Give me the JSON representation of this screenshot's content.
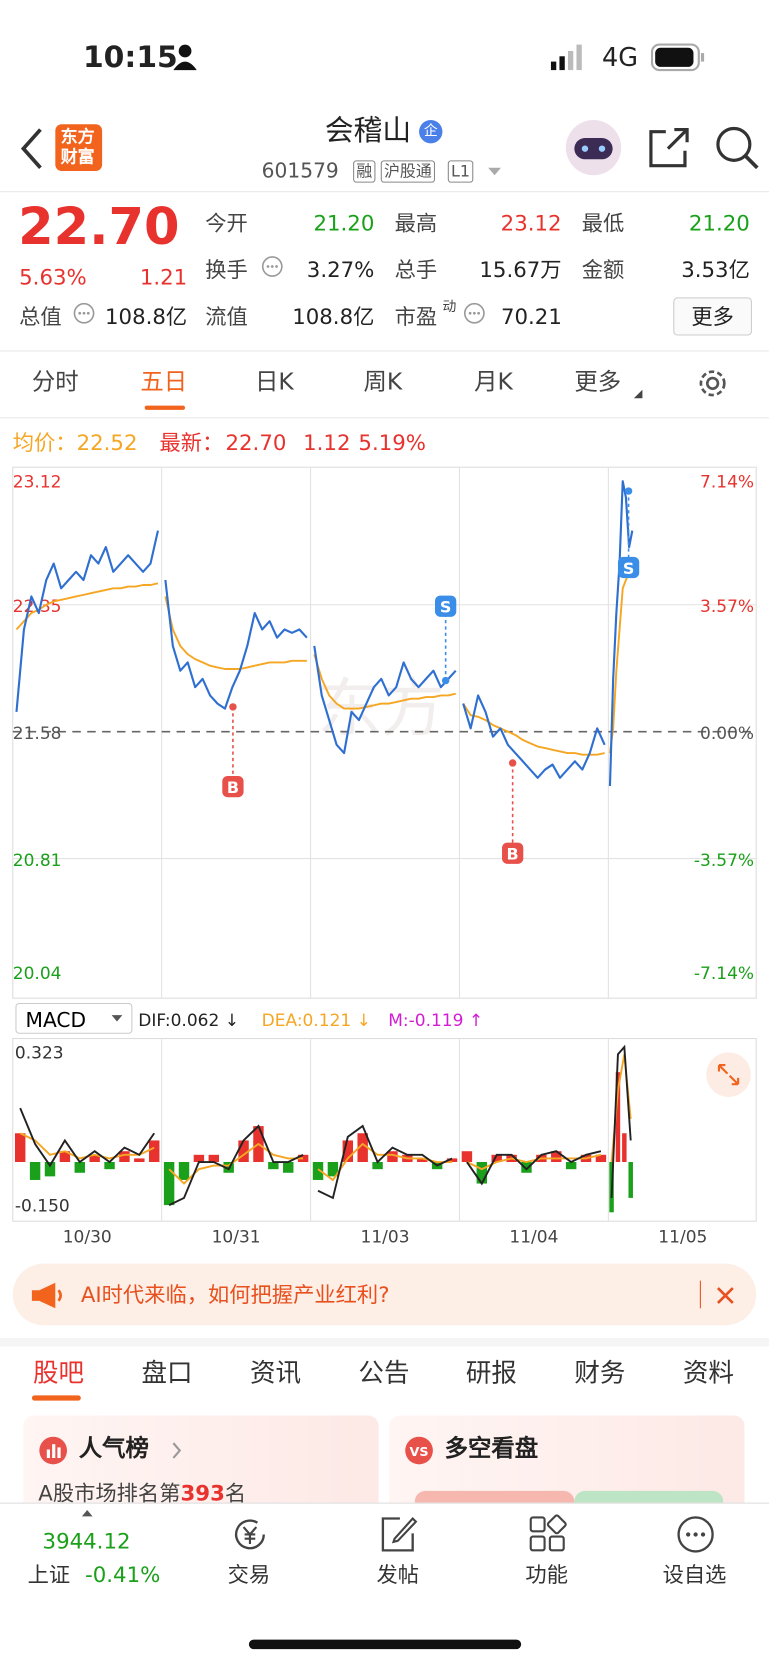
{
  "status": {
    "time": "10:15",
    "network": "4G"
  },
  "header": {
    "logo": [
      "东方",
      "财富"
    ],
    "name": "会稽山",
    "badge": "企",
    "code": "601579",
    "tags": [
      "融",
      "沪股通",
      "L1"
    ]
  },
  "quote": {
    "price": "22.70",
    "pct": "5.63%",
    "change": "1.21",
    "fields": [
      {
        "label": "今开",
        "value": "21.20"
      },
      {
        "label": "最高",
        "value": "23.12"
      },
      {
        "label": "最低",
        "value": "21.20"
      },
      {
        "label": "换手",
        "value": "3.27%"
      },
      {
        "label": "总手",
        "value": "15.67万"
      },
      {
        "label": "金额",
        "value": "3.53亿"
      },
      {
        "label": "总值",
        "value": "108.8亿"
      },
      {
        "label": "流值",
        "value": "108.8亿"
      },
      {
        "label": "市盈",
        "sup": "动",
        "value": "70.21"
      }
    ],
    "more": "更多"
  },
  "tabs": [
    "分时",
    "五日",
    "日K",
    "周K",
    "月K",
    "更多"
  ],
  "legend": {
    "avg_label": "均价：",
    "avg_value": "22.52",
    "last_label": "最新：",
    "last_value": "22.70",
    "change": "1.12",
    "pct": "5.19%"
  },
  "chart_data": {
    "type": "line",
    "ylim": [
      20.04,
      23.12
    ],
    "yticks": [
      20.04,
      20.81,
      21.58,
      22.35,
      23.12
    ],
    "pct_labels": [
      "-7.14%",
      "-3.57%",
      "0.00%",
      "3.57%",
      "7.14%"
    ],
    "x_labels": [
      "10/30",
      "10/31",
      "11/03",
      "11/04",
      "11/05"
    ],
    "price": [
      [
        21.7,
        22.2,
        22.4,
        22.3,
        22.5,
        22.6,
        22.45,
        22.5,
        22.55,
        22.5,
        22.65,
        22.6,
        22.7,
        22.55,
        22.6,
        22.65,
        22.6,
        22.55,
        22.6,
        22.8
      ],
      [
        22.5,
        22.1,
        21.95,
        22.0,
        21.85,
        21.9,
        21.8,
        21.75,
        21.72,
        21.85,
        21.95,
        22.1,
        22.3,
        22.2,
        22.25,
        22.15,
        22.2,
        22.18,
        22.2,
        22.15
      ],
      [
        22.1,
        21.8,
        21.65,
        21.5,
        21.45,
        21.7,
        21.65,
        21.75,
        21.85,
        21.9,
        21.8,
        21.85,
        22.0,
        21.9,
        21.85,
        21.9,
        21.95,
        21.85,
        21.9,
        21.95
      ],
      [
        21.75,
        21.6,
        21.8,
        21.7,
        21.55,
        21.6,
        21.5,
        21.45,
        21.4,
        21.35,
        21.3,
        21.35,
        21.38,
        21.3,
        21.35,
        21.4,
        21.35,
        21.45,
        21.6,
        21.5
      ],
      [
        21.25,
        21.9,
        22.3,
        22.6,
        23.1,
        23.0,
        22.7,
        22.8
      ]
    ],
    "avg": [
      [
        22.2,
        22.25,
        22.3,
        22.32,
        22.35,
        22.37,
        22.38,
        22.39,
        22.4,
        22.41,
        22.42,
        22.43,
        22.44,
        22.45,
        22.45,
        22.46,
        22.46,
        22.47,
        22.47,
        22.48
      ],
      [
        22.4,
        22.2,
        22.1,
        22.05,
        22.02,
        22.0,
        21.98,
        21.97,
        21.96,
        21.96,
        21.96,
        21.97,
        21.98,
        21.99,
        22.0,
        22.0,
        22.0,
        22.01,
        22.01,
        22.01
      ],
      [
        22.05,
        21.9,
        21.8,
        21.75,
        21.72,
        21.72,
        21.72,
        21.73,
        21.74,
        21.75,
        21.75,
        21.76,
        21.77,
        21.78,
        21.78,
        21.79,
        21.79,
        21.8,
        21.8,
        21.81
      ],
      [
        21.75,
        21.68,
        21.67,
        21.65,
        21.62,
        21.6,
        21.58,
        21.56,
        21.53,
        21.51,
        21.49,
        21.48,
        21.47,
        21.46,
        21.45,
        21.45,
        21.44,
        21.44,
        21.44,
        21.45
      ],
      [
        21.45,
        21.6,
        21.95,
        22.2,
        22.45,
        22.5,
        22.55,
        22.57
      ]
    ],
    "trades": [
      {
        "label": "B",
        "price": 21.73
      },
      {
        "label": "S",
        "price": 21.89
      },
      {
        "label": "B",
        "price": 21.39
      },
      {
        "label": "S",
        "price": 23.04
      }
    ],
    "macd": {
      "name": "MACD",
      "dif": "DIF:0.062 ↓",
      "dea": "DEA:0.121 ↓",
      "m": "M:-0.119 ↑",
      "ylim": [
        -0.15,
        0.323
      ],
      "yticks": [
        {
          "value": -0.15,
          "label": "-0.150"
        },
        0.323
      ],
      "hist": [
        [
          0.08,
          -0.05,
          -0.04,
          0.03,
          -0.03,
          0.02,
          -0.02,
          0.03,
          0.01,
          0.06
        ],
        [
          -0.12,
          -0.05,
          0.02,
          0.02,
          -0.03,
          0.06,
          0.1,
          -0.02,
          -0.03,
          0.02
        ],
        [
          -0.05,
          -0.04,
          0.06,
          0.08,
          -0.02,
          0.03,
          0.02,
          0.01,
          -0.02,
          0.01
        ],
        [
          0.03,
          -0.06,
          0.02,
          0.02,
          -0.03,
          0.02,
          0.03,
          -0.02,
          0.02,
          0.02
        ],
        [
          -0.14,
          0.25,
          0.08,
          -0.1
        ]
      ],
      "dif_line": [
        [
          0.15,
          0.05,
          -0.01,
          0.06,
          0.0,
          0.03,
          0.0,
          0.04,
          0.02,
          0.08
        ],
        [
          -0.12,
          -0.1,
          0.0,
          0.0,
          -0.02,
          0.06,
          0.1,
          0.0,
          0.0,
          0.02
        ],
        [
          -0.08,
          -0.1,
          0.07,
          0.1,
          0.0,
          0.04,
          0.02,
          0.02,
          -0.01,
          0.01
        ],
        [
          0.0,
          -0.06,
          0.02,
          0.02,
          -0.02,
          0.02,
          0.03,
          0.0,
          0.02,
          0.03
        ],
        [
          -0.1,
          0.3,
          0.32,
          0.06
        ]
      ],
      "dea_line": [
        [
          0.08,
          0.06,
          0.02,
          0.03,
          0.01,
          0.02,
          0.01,
          0.02,
          0.02,
          0.04
        ],
        [
          -0.02,
          -0.06,
          -0.02,
          -0.01,
          -0.01,
          0.02,
          0.05,
          0.02,
          0.01,
          0.01
        ],
        [
          -0.02,
          -0.05,
          0.01,
          0.05,
          0.02,
          0.02,
          0.01,
          0.01,
          0.0,
          0.0
        ],
        [
          0.0,
          -0.02,
          0.0,
          0.01,
          0.0,
          0.01,
          0.01,
          0.01,
          0.01,
          0.02
        ],
        [
          0.0,
          0.2,
          0.3,
          0.12
        ]
      ]
    }
  },
  "banner": "AI时代来临，如何把握产业红利?",
  "tabs2": [
    "股吧",
    "盘口",
    "资讯",
    "公告",
    "研报",
    "财务",
    "资料"
  ],
  "cards": {
    "rank_title": "人气榜",
    "rank_prefix": "A股市场排名第",
    "rank_value": "393",
    "rank_suffix": "名",
    "bull_title": "多空看盘"
  },
  "nav": {
    "index_value": "3944.12",
    "index_name": "上证",
    "index_pct": "-0.41%",
    "items": [
      "交易",
      "发帖",
      "功能",
      "设自选"
    ]
  }
}
